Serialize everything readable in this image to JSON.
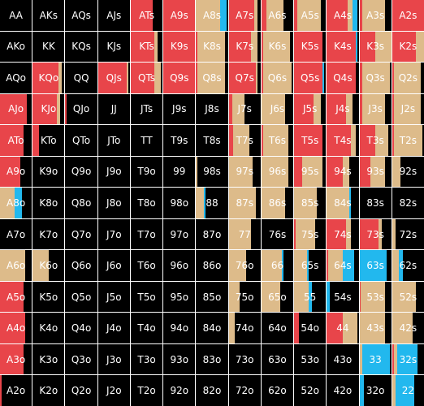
{
  "colors": {
    "fold": "#000000",
    "raise": "#e8454a",
    "call": "#ddbb8a",
    "allin": "#22b8ee",
    "text": "#ffffff"
  },
  "legend_order": [
    "raise",
    "call",
    "allin",
    "fold"
  ],
  "hands": [
    [
      "AA",
      "AKs",
      "AQs",
      "AJs",
      "ATs",
      "A9s",
      "A8s",
      "A7s",
      "A6s",
      "A5s",
      "A4s",
      "A3s",
      "A2s"
    ],
    [
      "AKo",
      "KK",
      "KQs",
      "KJs",
      "KTs",
      "K9s",
      "K8s",
      "K7s",
      "K6s",
      "K5s",
      "K4s",
      "K3s",
      "K2s"
    ],
    [
      "AQo",
      "KQo",
      "QQ",
      "QJs",
      "QTs",
      "Q9s",
      "Q8s",
      "Q7s",
      "Q6s",
      "Q5s",
      "Q4s",
      "Q3s",
      "Q2s"
    ],
    [
      "AJo",
      "KJo",
      "QJo",
      "JJ",
      "JTs",
      "J9s",
      "J8s",
      "J7s",
      "J6s",
      "J5s",
      "J4s",
      "J3s",
      "J2s"
    ],
    [
      "ATo",
      "KTo",
      "QTo",
      "JTo",
      "TT",
      "T9s",
      "T8s",
      "T7s",
      "T6s",
      "T5s",
      "T4s",
      "T3s",
      "T2s"
    ],
    [
      "A9o",
      "K9o",
      "Q9o",
      "J9o",
      "T9o",
      "99",
      "98s",
      "97s",
      "96s",
      "95s",
      "94s",
      "93s",
      "92s"
    ],
    [
      "A8o",
      "K8o",
      "Q8o",
      "J8o",
      "T8o",
      "98o",
      "88",
      "87s",
      "86s",
      "85s",
      "84s",
      "83s",
      "82s"
    ],
    [
      "A7o",
      "K7o",
      "Q7o",
      "J7o",
      "T7o",
      "97o",
      "87o",
      "77",
      "76s",
      "75s",
      "74s",
      "73s",
      "72s"
    ],
    [
      "A6o",
      "K6o",
      "Q6o",
      "J6o",
      "T6o",
      "96o",
      "86o",
      "76o",
      "66",
      "65s",
      "64s",
      "63s",
      "62s"
    ],
    [
      "A5o",
      "K5o",
      "Q5o",
      "J5o",
      "T5o",
      "95o",
      "85o",
      "75o",
      "65o",
      "55",
      "54s",
      "53s",
      "52s"
    ],
    [
      "A4o",
      "K4o",
      "Q4o",
      "J4o",
      "T4o",
      "94o",
      "84o",
      "74o",
      "64o",
      "54o",
      "44",
      "43s",
      "42s"
    ],
    [
      "A3o",
      "K3o",
      "Q3o",
      "J3o",
      "T3o",
      "93o",
      "83o",
      "73o",
      "63o",
      "53o",
      "43o",
      "33",
      "32s"
    ],
    [
      "A2o",
      "K2o",
      "Q2o",
      "J2o",
      "T2o",
      "92o",
      "82o",
      "72o",
      "62o",
      "52o",
      "42o",
      "32o",
      "22"
    ]
  ],
  "freqs": [
    [
      [
        0,
        0,
        0
      ],
      [
        0,
        0,
        0
      ],
      [
        0,
        0,
        0
      ],
      [
        0,
        0,
        0
      ],
      [
        0.7,
        0,
        0
      ],
      [
        1,
        0,
        0
      ],
      [
        0,
        0.75,
        0.2
      ],
      [
        0.8,
        0.1,
        0
      ],
      [
        0.15,
        0.55,
        0
      ],
      [
        0.1,
        0.75,
        0
      ],
      [
        0.65,
        0.15,
        0.15
      ],
      [
        0.1,
        0.7,
        0
      ],
      [
        1,
        0,
        0
      ]
    ],
    [
      [
        0,
        0,
        0
      ],
      [
        0,
        0,
        0
      ],
      [
        0,
        0,
        0
      ],
      [
        0,
        0,
        0
      ],
      [
        0.75,
        0.1,
        0
      ],
      [
        1,
        0,
        0
      ],
      [
        0.05,
        0.85,
        0
      ],
      [
        0.7,
        0.2,
        0
      ],
      [
        0.05,
        0.85,
        0
      ],
      [
        0.9,
        0,
        0
      ],
      [
        0.9,
        0,
        0.05
      ],
      [
        0.5,
        0.5,
        0
      ],
      [
        0.75,
        0.25,
        0
      ]
    ],
    [
      [
        0,
        0,
        0
      ],
      [
        0.8,
        0.1,
        0
      ],
      [
        0,
        0,
        0
      ],
      [
        0.9,
        0.05,
        0
      ],
      [
        0.75,
        0.2,
        0
      ],
      [
        1,
        0,
        0
      ],
      [
        0.05,
        0.85,
        0
      ],
      [
        0.85,
        0.05,
        0
      ],
      [
        0.05,
        0.9,
        0
      ],
      [
        0.9,
        0,
        0.05
      ],
      [
        0.9,
        0,
        0
      ],
      [
        0.1,
        0.85,
        0
      ],
      [
        0.05,
        0.85,
        0
      ]
    ],
    [
      [
        0.85,
        0,
        0
      ],
      [
        0.75,
        0.1,
        0
      ],
      [
        0.05,
        0,
        0
      ],
      [
        0,
        0,
        0
      ],
      [
        0,
        0,
        0
      ],
      [
        0,
        0,
        0
      ],
      [
        0,
        0,
        0
      ],
      [
        0.1,
        0.4,
        0
      ],
      [
        0,
        0.75,
        0
      ],
      [
        0.6,
        0.25,
        0
      ],
      [
        0.6,
        0.2,
        0
      ],
      [
        0.1,
        0.7,
        0
      ],
      [
        0.05,
        0.85,
        0
      ]
    ],
    [
      [
        0.75,
        0,
        0
      ],
      [
        0.2,
        0,
        0
      ],
      [
        0,
        0,
        0
      ],
      [
        0,
        0,
        0
      ],
      [
        0,
        0,
        0
      ],
      [
        0,
        0,
        0
      ],
      [
        0,
        0,
        0
      ],
      [
        0.15,
        0.5,
        0
      ],
      [
        0.05,
        0.8,
        0
      ],
      [
        0.9,
        0,
        0
      ],
      [
        0.75,
        0.15,
        0
      ],
      [
        0.5,
        0.4,
        0
      ],
      [
        0.05,
        0.9,
        0
      ]
    ],
    [
      [
        0.65,
        0,
        0
      ],
      [
        0,
        0,
        0
      ],
      [
        0,
        0,
        0
      ],
      [
        0,
        0,
        0
      ],
      [
        0,
        0,
        0
      ],
      [
        0,
        0,
        0
      ],
      [
        0,
        0.05,
        0
      ],
      [
        0,
        0.75,
        0
      ],
      [
        0,
        0.85,
        0
      ],
      [
        0.25,
        0.65,
        0
      ],
      [
        0.5,
        0.2,
        0
      ],
      [
        0.35,
        0.45,
        0
      ],
      [
        0,
        0.25,
        0
      ]
    ],
    [
      [
        0,
        0.45,
        0.25
      ],
      [
        0,
        0,
        0
      ],
      [
        0,
        0,
        0
      ],
      [
        0,
        0,
        0
      ],
      [
        0,
        0,
        0
      ],
      [
        0,
        0,
        0
      ],
      [
        0,
        0.25,
        0.05
      ],
      [
        0,
        0.85,
        0
      ],
      [
        0,
        0.75,
        0
      ],
      [
        0,
        0.7,
        0
      ],
      [
        0,
        0.7,
        0.05
      ],
      [
        0,
        0,
        0
      ],
      [
        0,
        0,
        0
      ]
    ],
    [
      [
        0,
        0,
        0
      ],
      [
        0,
        0,
        0
      ],
      [
        0,
        0,
        0
      ],
      [
        0,
        0,
        0
      ],
      [
        0,
        0,
        0
      ],
      [
        0,
        0,
        0
      ],
      [
        0,
        0,
        0
      ],
      [
        0,
        0.7,
        0
      ],
      [
        0,
        0,
        0
      ],
      [
        0.05,
        0.6,
        0
      ],
      [
        0.6,
        0.15,
        0
      ],
      [
        0.6,
        0.1,
        0
      ],
      [
        0,
        0.1,
        0
      ]
    ],
    [
      [
        0,
        0.8,
        0
      ],
      [
        0,
        0.5,
        0
      ],
      [
        0,
        0,
        0
      ],
      [
        0,
        0,
        0
      ],
      [
        0,
        0,
        0
      ],
      [
        0,
        0,
        0
      ],
      [
        0,
        0,
        0
      ],
      [
        0,
        0.55,
        0
      ],
      [
        0,
        0.65,
        0.05
      ],
      [
        0,
        0.4,
        0.05
      ],
      [
        0.05,
        0.45,
        0.35
      ],
      [
        0,
        0,
        0.85
      ],
      [
        0,
        0.2,
        0.15
      ]
    ],
    [
      [
        0.75,
        0,
        0
      ],
      [
        0,
        0,
        0
      ],
      [
        0,
        0,
        0
      ],
      [
        0,
        0,
        0
      ],
      [
        0,
        0,
        0
      ],
      [
        0,
        0,
        0
      ],
      [
        0,
        0,
        0
      ],
      [
        0,
        0.35,
        0
      ],
      [
        0,
        0.6,
        0
      ],
      [
        0,
        0.45,
        0.1
      ],
      [
        0,
        0,
        0.1
      ],
      [
        0.05,
        0.75,
        0
      ],
      [
        0,
        0.75,
        0
      ]
    ],
    [
      [
        0.8,
        0,
        0
      ],
      [
        0,
        0,
        0
      ],
      [
        0,
        0,
        0
      ],
      [
        0,
        0,
        0
      ],
      [
        0,
        0,
        0
      ],
      [
        0,
        0,
        0
      ],
      [
        0,
        0,
        0
      ],
      [
        0,
        0.2,
        0
      ],
      [
        0,
        0,
        0
      ],
      [
        0.15,
        0,
        0
      ],
      [
        0.5,
        0.45,
        0
      ],
      [
        0,
        0.8,
        0
      ],
      [
        0,
        0.65,
        0
      ]
    ],
    [
      [
        0.75,
        0,
        0
      ],
      [
        0,
        0,
        0
      ],
      [
        0,
        0,
        0
      ],
      [
        0,
        0,
        0
      ],
      [
        0,
        0,
        0
      ],
      [
        0,
        0,
        0
      ],
      [
        0,
        0,
        0
      ],
      [
        0,
        0,
        0
      ],
      [
        0,
        0,
        0
      ],
      [
        0,
        0,
        0
      ],
      [
        0,
        0,
        0
      ],
      [
        0,
        0.1,
        0.85
      ],
      [
        0.05,
        0.1,
        0.65
      ]
    ],
    [
      [
        0.05,
        0,
        0
      ],
      [
        0,
        0,
        0
      ],
      [
        0,
        0,
        0
      ],
      [
        0,
        0,
        0
      ],
      [
        0,
        0,
        0
      ],
      [
        0,
        0,
        0
      ],
      [
        0,
        0,
        0
      ],
      [
        0,
        0,
        0
      ],
      [
        0,
        0,
        0
      ],
      [
        0,
        0,
        0
      ],
      [
        0,
        0,
        0
      ],
      [
        0,
        0,
        0.15
      ],
      [
        0,
        0.1,
        0.6
      ]
    ]
  ]
}
